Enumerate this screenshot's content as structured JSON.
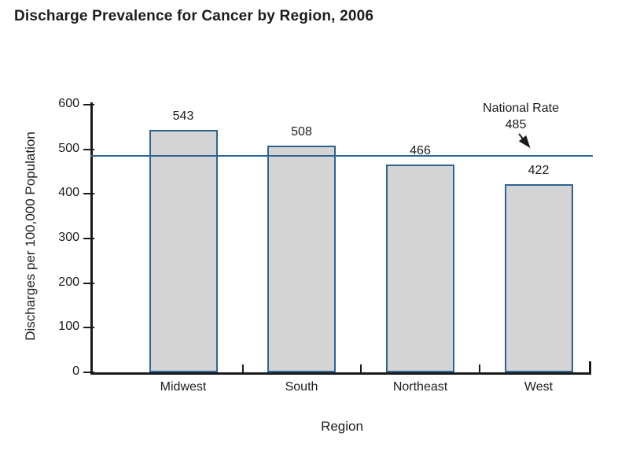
{
  "chart_data": {
    "type": "bar",
    "title": "Discharge Prevalence for Cancer by Region, 2006",
    "xlabel": "Region",
    "ylabel": "Discharges per 100,000 Population",
    "categories": [
      "Midwest",
      "South",
      "Northeast",
      "West"
    ],
    "values": [
      543,
      508,
      466,
      422
    ],
    "ylim": [
      0,
      600
    ],
    "yticks": [
      0,
      100,
      200,
      300,
      400,
      500,
      600
    ],
    "grid": false,
    "legend": "none",
    "reference_line": {
      "label": "National Rate",
      "value": 485
    },
    "colors": {
      "bar_fill": "#d4d4d4",
      "bar_border": "#2e6493",
      "reference_line": "#2e6493",
      "axis": "#1a1a1a",
      "text": "#1c1c1c"
    }
  }
}
